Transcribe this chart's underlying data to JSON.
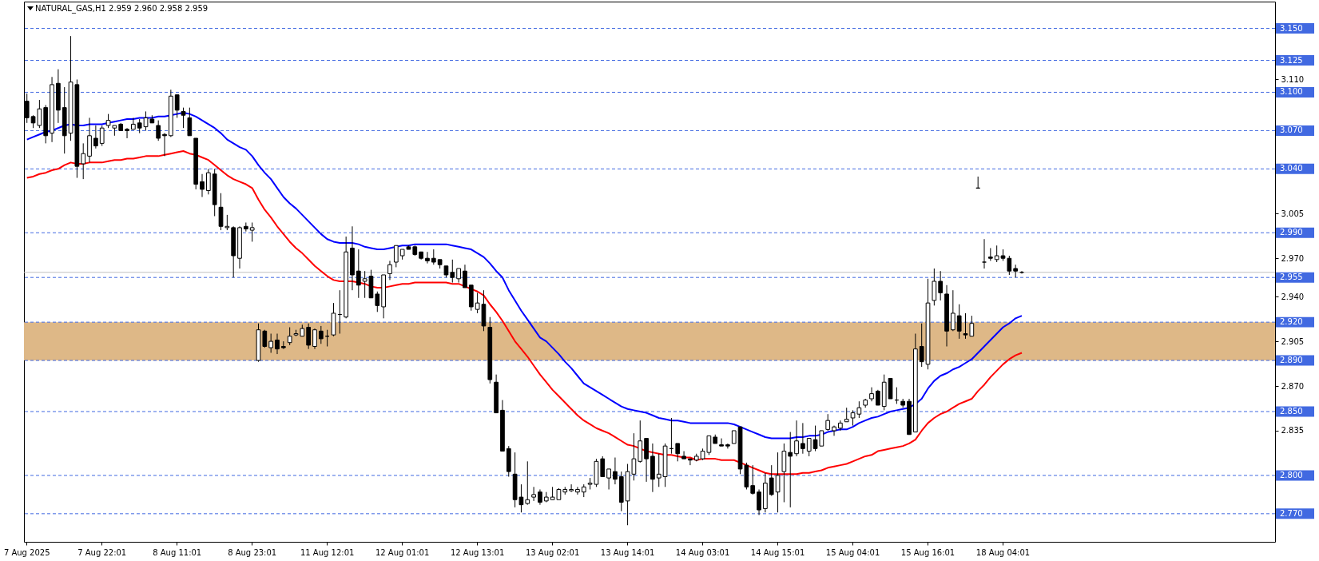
{
  "chart_data": {
    "type": "candlestick",
    "title": "NATURAL_GAS,H1 2.959 2.960 2.958 2.959",
    "categories": [
      "7 Aug 2025",
      null,
      null,
      null,
      null,
      null,
      null,
      null,
      null,
      null,
      null,
      null,
      "7 Aug 22:01",
      null,
      null,
      null,
      null,
      null,
      null,
      null,
      null,
      null,
      null,
      null,
      "8 Aug 11:01",
      null,
      null,
      null,
      null,
      null,
      null,
      null,
      null,
      null,
      null,
      null,
      "8 Aug 23:01",
      null,
      null,
      null,
      null,
      null,
      null,
      null,
      null,
      null,
      null,
      null,
      "11 Aug 12:01",
      null,
      null,
      null,
      null,
      null,
      null,
      null,
      null,
      null,
      null,
      null,
      "12 Aug 01:01",
      null,
      null,
      null,
      null,
      null,
      null,
      null,
      null,
      null,
      null,
      null,
      "12 Aug 13:01",
      null,
      null,
      null,
      null,
      null,
      null,
      null,
      null,
      null,
      null,
      null,
      "13 Aug 02:01",
      null,
      null,
      null,
      null,
      null,
      null,
      null,
      null,
      null,
      null,
      null,
      "13 Aug 14:01",
      null,
      null,
      null,
      null,
      null,
      null,
      null,
      null,
      null,
      null,
      null,
      "14 Aug 03:01",
      null,
      null,
      null,
      null,
      null,
      null,
      null,
      null,
      null,
      null,
      null,
      "14 Aug 15:01",
      null,
      null,
      null,
      null,
      null,
      null,
      null,
      null,
      null,
      null,
      null,
      "15 Aug 04:01",
      null,
      null,
      null,
      null,
      null,
      null,
      null,
      null,
      null,
      null,
      null,
      "15 Aug 16:01",
      null,
      null,
      null,
      null,
      null,
      null,
      null,
      null,
      null,
      null,
      null,
      "18 Aug 04:01",
      null,
      null,
      null,
      null,
      null,
      null,
      null,
      null,
      null,
      null,
      null,
      null,
      null,
      null,
      null,
      null,
      null,
      null,
      null,
      null,
      null,
      null,
      null,
      null,
      null,
      null,
      null,
      null,
      null,
      null,
      null,
      null,
      null,
      null,
      null,
      null,
      null,
      null,
      null,
      null,
      null,
      null,
      null
    ],
    "ohlc": [
      [
        3.093,
        3.099,
        3.076,
        3.08
      ],
      [
        3.081,
        3.082,
        3.072,
        3.076
      ],
      [
        3.074,
        3.094,
        3.072,
        3.087
      ],
      [
        3.088,
        3.09,
        3.06,
        3.066
      ],
      [
        3.068,
        3.112,
        3.061,
        3.106
      ],
      [
        3.107,
        3.118,
        3.076,
        3.086
      ],
      [
        3.088,
        3.104,
        3.052,
        3.066
      ],
      [
        3.068,
        3.144,
        3.062,
        3.108
      ],
      [
        3.106,
        3.11,
        3.033,
        3.042
      ],
      [
        3.044,
        3.06,
        3.032,
        3.052
      ],
      [
        3.05,
        3.08,
        3.045,
        3.066
      ],
      [
        3.064,
        3.074,
        3.056,
        3.058
      ],
      [
        3.06,
        3.074,
        3.058,
        3.072
      ],
      [
        3.074,
        3.083,
        3.072,
        3.078
      ],
      [
        3.072,
        3.074,
        3.066,
        3.074
      ],
      [
        3.075,
        3.076,
        3.07,
        3.07
      ],
      [
        3.071,
        3.072,
        3.064,
        3.07
      ],
      [
        3.071,
        3.08,
        3.071,
        3.075
      ],
      [
        3.076,
        3.079,
        3.068,
        3.072
      ],
      [
        3.073,
        3.085,
        3.07,
        3.08
      ],
      [
        3.079,
        3.082,
        3.076,
        3.076
      ],
      [
        3.074,
        3.078,
        3.062,
        3.064
      ],
      [
        3.067,
        3.068,
        3.05,
        3.066
      ],
      [
        3.066,
        3.102,
        3.065,
        3.097
      ],
      [
        3.098,
        3.098,
        3.08,
        3.086
      ],
      [
        3.085,
        3.088,
        3.072,
        3.082
      ],
      [
        3.08,
        3.088,
        3.066,
        3.066
      ],
      [
        3.064,
        3.064,
        3.024,
        3.028
      ],
      [
        3.03,
        3.036,
        3.018,
        3.024
      ],
      [
        3.023,
        3.04,
        3.02,
        3.037
      ],
      [
        3.036,
        3.04,
        3.003,
        3.012
      ],
      [
        3.01,
        3.021,
        2.992,
        2.995
      ],
      [
        2.994,
        3.004,
        2.992,
        2.995
      ],
      [
        2.994,
        2.995,
        2.955,
        2.972
      ],
      [
        2.97,
        2.995,
        2.962,
        2.994
      ],
      [
        2.995,
        2.998,
        2.991,
        2.993
      ],
      [
        2.992,
        2.998,
        2.983,
        2.994
      ],
      [
        2.89,
        2.919,
        2.889,
        2.914
      ],
      [
        2.913,
        2.914,
        2.9,
        2.901
      ],
      [
        2.9,
        2.911,
        2.896,
        2.905
      ],
      [
        2.906,
        2.911,
        2.895,
        2.899
      ],
      [
        2.901,
        2.905,
        2.899,
        2.9
      ],
      [
        2.904,
        2.916,
        2.902,
        2.909
      ],
      [
        2.91,
        2.914,
        2.909,
        2.911
      ],
      [
        2.909,
        2.918,
        2.909,
        2.915
      ],
      [
        2.916,
        2.919,
        2.899,
        2.902
      ],
      [
        2.901,
        2.915,
        2.899,
        2.914
      ],
      [
        2.913,
        2.917,
        2.903,
        2.907
      ],
      [
        2.909,
        2.914,
        2.901,
        2.909
      ],
      [
        2.91,
        2.935,
        2.909,
        2.927
      ],
      [
        2.926,
        2.945,
        2.911,
        2.926
      ],
      [
        2.924,
        2.987,
        2.923,
        2.975
      ],
      [
        2.978,
        2.995,
        2.945,
        2.957
      ],
      [
        2.96,
        2.977,
        2.939,
        2.949
      ],
      [
        2.952,
        2.96,
        2.939,
        2.954
      ],
      [
        2.956,
        2.961,
        2.939,
        2.939
      ],
      [
        2.942,
        2.944,
        2.928,
        2.933
      ],
      [
        2.932,
        2.957,
        2.923,
        2.957
      ],
      [
        2.958,
        2.968,
        2.953,
        2.965
      ],
      [
        2.967,
        2.98,
        2.963,
        2.98
      ],
      [
        2.972,
        2.977,
        2.969,
        2.977
      ],
      [
        2.979,
        2.98,
        2.977,
        2.977
      ],
      [
        2.979,
        2.98,
        2.972,
        2.973
      ],
      [
        2.975,
        2.975,
        2.969,
        2.97
      ],
      [
        2.97,
        2.975,
        2.966,
        2.968
      ],
      [
        2.97,
        2.977,
        2.965,
        2.967
      ],
      [
        2.969,
        2.969,
        2.962,
        2.965
      ],
      [
        2.964,
        2.964,
        2.955,
        2.957
      ],
      [
        2.959,
        2.969,
        2.951,
        2.955
      ],
      [
        2.954,
        2.962,
        2.951,
        2.962
      ],
      [
        2.96,
        2.965,
        2.947,
        2.947
      ],
      [
        2.949,
        2.949,
        2.929,
        2.932
      ],
      [
        2.93,
        2.943,
        2.927,
        2.935
      ],
      [
        2.934,
        2.945,
        2.913,
        2.917
      ],
      [
        2.916,
        2.924,
        2.872,
        2.875
      ],
      [
        2.873,
        2.879,
        2.849,
        2.849
      ],
      [
        2.851,
        2.859,
        2.819,
        2.819
      ],
      [
        2.821,
        2.823,
        2.799,
        2.803
      ],
      [
        2.801,
        2.818,
        2.775,
        2.781
      ],
      [
        2.783,
        2.793,
        2.771,
        2.777
      ],
      [
        2.778,
        2.811,
        2.777,
        2.781
      ],
      [
        2.783,
        2.791,
        2.78,
        2.785
      ],
      [
        2.787,
        2.789,
        2.777,
        2.779
      ],
      [
        2.78,
        2.787,
        2.779,
        2.783
      ],
      [
        2.781,
        2.791,
        2.781,
        2.783
      ],
      [
        2.781,
        2.79,
        2.781,
        2.789
      ],
      [
        2.787,
        2.791,
        2.785,
        2.789
      ],
      [
        2.788,
        2.793,
        2.787,
        2.789
      ],
      [
        2.787,
        2.791,
        2.785,
        2.789
      ],
      [
        2.787,
        2.793,
        2.783,
        2.791
      ],
      [
        2.793,
        2.798,
        2.789,
        2.794
      ],
      [
        2.793,
        2.813,
        2.791,
        2.811
      ],
      [
        2.813,
        2.815,
        2.799,
        2.799
      ],
      [
        2.798,
        2.805,
        2.789,
        2.805
      ],
      [
        2.803,
        2.814,
        2.793,
        2.797
      ],
      [
        2.799,
        2.803,
        2.772,
        2.779
      ],
      [
        2.78,
        2.809,
        2.761,
        2.803
      ],
      [
        2.801,
        2.833,
        2.796,
        2.813
      ],
      [
        2.811,
        2.843,
        2.81,
        2.827
      ],
      [
        2.829,
        2.829,
        2.795,
        2.813
      ],
      [
        2.815,
        2.825,
        2.787,
        2.797
      ],
      [
        2.798,
        2.817,
        2.791,
        2.801
      ],
      [
        2.799,
        2.825,
        2.791,
        2.823
      ],
      [
        2.821,
        2.845,
        2.817,
        2.821
      ],
      [
        2.825,
        2.825,
        2.811,
        2.817
      ],
      [
        2.815,
        2.819,
        2.813,
        2.813
      ],
      [
        2.813,
        2.813,
        2.808,
        2.812
      ],
      [
        2.812,
        2.817,
        2.811,
        2.815
      ],
      [
        2.813,
        2.821,
        2.812,
        2.819
      ],
      [
        2.818,
        2.831,
        2.816,
        2.831
      ],
      [
        2.83,
        2.832,
        2.825,
        2.825
      ],
      [
        2.824,
        2.829,
        2.823,
        2.823
      ],
      [
        2.824,
        2.825,
        2.821,
        2.823
      ],
      [
        2.825,
        2.835,
        2.825,
        2.835
      ],
      [
        2.838,
        2.838,
        2.801,
        2.805
      ],
      [
        2.808,
        2.81,
        2.789,
        2.791
      ],
      [
        2.792,
        2.808,
        2.785,
        2.786
      ],
      [
        2.787,
        2.789,
        2.769,
        2.773
      ],
      [
        2.774,
        2.802,
        2.771,
        2.794
      ],
      [
        2.798,
        2.808,
        2.784,
        2.785
      ],
      [
        2.787,
        2.818,
        2.771,
        2.8
      ],
      [
        2.803,
        2.825,
        2.779,
        2.819
      ],
      [
        2.818,
        2.834,
        2.775,
        2.815
      ],
      [
        2.817,
        2.843,
        2.815,
        2.827
      ],
      [
        2.825,
        2.841,
        2.817,
        2.821
      ],
      [
        2.819,
        2.829,
        2.815,
        2.829
      ],
      [
        2.828,
        2.839,
        2.819,
        2.821
      ],
      [
        2.823,
        2.835,
        2.823,
        2.835
      ],
      [
        2.836,
        2.848,
        2.835,
        2.843
      ],
      [
        2.835,
        2.839,
        2.831,
        2.838
      ],
      [
        2.837,
        2.843,
        2.835,
        2.841
      ],
      [
        2.842,
        2.853,
        2.842,
        2.844
      ],
      [
        2.845,
        2.851,
        2.839,
        2.849
      ],
      [
        2.848,
        2.858,
        2.845,
        2.853
      ],
      [
        2.855,
        2.86,
        2.853,
        2.859
      ],
      [
        2.86,
        2.869,
        2.858,
        2.864
      ],
      [
        2.866,
        2.867,
        2.855,
        2.855
      ],
      [
        2.854,
        2.879,
        2.851,
        2.873
      ],
      [
        2.876,
        2.876,
        2.86,
        2.86
      ],
      [
        2.859,
        2.869,
        2.856,
        2.859
      ],
      [
        2.858,
        2.86,
        2.853,
        2.855
      ],
      [
        2.858,
        2.86,
        2.832,
        2.832
      ],
      [
        2.834,
        2.911,
        2.834,
        2.899
      ],
      [
        2.901,
        2.919,
        2.885,
        2.889
      ],
      [
        2.887,
        2.954,
        2.883,
        2.935
      ],
      [
        2.937,
        2.962,
        2.933,
        2.952
      ],
      [
        2.952,
        2.96,
        2.937,
        2.943
      ],
      [
        2.942,
        2.949,
        2.901,
        2.913
      ],
      [
        2.914,
        2.945,
        2.913,
        2.927
      ],
      [
        2.925,
        2.934,
        2.907,
        2.913
      ],
      [
        2.911,
        2.927,
        2.907,
        2.91
      ],
      [
        2.909,
        2.925,
        2.909,
        2.919
      ],
      [
        3.025,
        3.034,
        3.025,
        3.025
      ],
      [
        2.967,
        2.985,
        2.962,
        2.967
      ],
      [
        2.971,
        2.978,
        2.968,
        2.97
      ],
      [
        2.969,
        2.98,
        2.967,
        2.972
      ],
      [
        2.972,
        2.977,
        2.968,
        2.97
      ],
      [
        2.97,
        2.972,
        2.957,
        2.96
      ],
      [
        2.962,
        2.965,
        2.955,
        2.96
      ],
      [
        2.959,
        2.96,
        2.958,
        2.959
      ],
      null,
      null,
      null,
      null,
      null,
      null,
      null,
      null,
      null,
      null,
      null,
      null,
      null,
      null,
      null,
      null,
      null,
      null,
      null,
      null,
      null,
      null,
      null,
      null,
      null,
      null,
      null,
      null,
      null,
      null,
      null,
      null,
      null,
      null,
      null,
      null,
      null,
      null,
      null,
      null
    ],
    "series": [
      {
        "type": "line",
        "color": "#0000ff",
        "values": [
          3.063,
          3.065,
          3.067,
          3.069,
          3.07,
          3.072,
          3.074,
          3.075,
          3.074,
          3.074,
          3.075,
          3.075,
          3.075,
          3.076,
          3.077,
          3.078,
          3.079,
          3.079,
          3.08,
          3.08,
          3.08,
          3.081,
          3.081,
          3.082,
          3.083,
          3.084,
          3.083,
          3.081,
          3.078,
          3.075,
          3.072,
          3.068,
          3.063,
          3.06,
          3.057,
          3.055,
          3.05,
          3.043,
          3.037,
          3.032,
          3.025,
          3.018,
          3.013,
          3.009,
          3.004,
          2.999,
          2.994,
          2.989,
          2.985,
          2.983,
          2.982,
          2.982,
          2.982,
          2.981,
          2.979,
          2.978,
          2.977,
          2.977,
          2.978,
          2.979,
          2.98,
          2.98,
          2.981,
          2.981,
          2.981,
          2.981,
          2.981,
          2.981,
          2.98,
          2.979,
          2.978,
          2.977,
          2.974,
          2.971,
          2.966,
          2.96,
          2.955,
          2.945,
          2.937,
          2.929,
          2.922,
          2.915,
          2.908,
          2.905,
          2.9,
          2.895,
          2.889,
          2.884,
          2.878,
          2.872,
          2.869,
          2.866,
          2.863,
          2.86,
          2.857,
          2.854,
          2.852,
          2.851,
          2.85,
          2.849,
          2.847,
          2.845,
          2.844,
          2.843,
          2.843,
          2.842,
          2.841,
          2.841,
          2.841,
          2.841,
          2.841,
          2.841,
          2.841,
          2.84,
          2.838,
          2.836,
          2.834,
          2.832,
          2.83,
          2.829,
          2.829,
          2.829,
          2.829,
          2.83,
          2.83,
          2.831,
          2.831,
          2.832,
          2.834,
          2.835,
          2.836,
          2.836,
          2.838,
          2.841,
          2.843,
          2.845,
          2.846,
          2.848,
          2.85,
          2.851,
          2.852,
          2.853,
          2.856,
          2.86,
          2.868,
          2.874,
          2.878,
          2.88,
          2.883,
          2.885,
          2.888,
          2.891,
          2.896,
          2.901,
          2.906,
          2.911,
          2.916,
          2.919,
          2.923,
          2.925,
          null,
          null,
          null,
          null,
          null,
          null,
          null,
          null,
          null,
          null,
          null,
          null,
          null,
          null,
          null,
          null,
          null,
          null,
          null,
          null,
          null,
          null,
          null,
          null,
          null,
          null,
          null,
          null,
          null,
          null,
          null,
          null,
          null,
          null,
          null,
          null,
          null,
          null,
          null,
          null
        ]
      },
      {
        "type": "line",
        "color": "#ff0000",
        "values": [
          3.033,
          3.034,
          3.036,
          3.037,
          3.039,
          3.04,
          3.043,
          3.045,
          3.044,
          3.044,
          3.045,
          3.045,
          3.045,
          3.046,
          3.047,
          3.047,
          3.048,
          3.048,
          3.049,
          3.05,
          3.05,
          3.05,
          3.051,
          3.052,
          3.053,
          3.054,
          3.052,
          3.051,
          3.049,
          3.047,
          3.043,
          3.039,
          3.035,
          3.032,
          3.03,
          3.028,
          3.025,
          3.016,
          3.008,
          3.002,
          2.995,
          2.989,
          2.983,
          2.978,
          2.974,
          2.969,
          2.964,
          2.96,
          2.956,
          2.953,
          2.952,
          2.952,
          2.952,
          2.951,
          2.95,
          2.948,
          2.947,
          2.947,
          2.948,
          2.949,
          2.95,
          2.95,
          2.951,
          2.951,
          2.951,
          2.951,
          2.951,
          2.951,
          2.95,
          2.95,
          2.948,
          2.946,
          2.944,
          2.941,
          2.934,
          2.928,
          2.921,
          2.913,
          2.905,
          2.899,
          2.893,
          2.886,
          2.879,
          2.873,
          2.867,
          2.862,
          2.857,
          2.852,
          2.847,
          2.843,
          2.84,
          2.837,
          2.835,
          2.833,
          2.83,
          2.827,
          2.824,
          2.823,
          2.821,
          2.819,
          2.818,
          2.817,
          2.816,
          2.816,
          2.815,
          2.814,
          2.814,
          2.812,
          2.813,
          2.813,
          2.813,
          2.812,
          2.812,
          2.812,
          2.81,
          2.808,
          2.806,
          2.804,
          2.802,
          2.801,
          2.801,
          2.801,
          2.801,
          2.801,
          2.802,
          2.802,
          2.803,
          2.804,
          2.806,
          2.807,
          2.808,
          2.809,
          2.811,
          2.813,
          2.815,
          2.816,
          2.819,
          2.82,
          2.821,
          2.822,
          2.823,
          2.825,
          2.828,
          2.835,
          2.841,
          2.845,
          2.848,
          2.85,
          2.853,
          2.856,
          2.858,
          2.86,
          2.866,
          2.871,
          2.877,
          2.882,
          2.887,
          2.891,
          2.894,
          2.896,
          null,
          null,
          null,
          null,
          null,
          null,
          null,
          null,
          null,
          null,
          null,
          null,
          null,
          null,
          null,
          null,
          null,
          null,
          null,
          null,
          null,
          null,
          null,
          null,
          null,
          null,
          null,
          null,
          null,
          null,
          null,
          null,
          null,
          null,
          null,
          null,
          null,
          null,
          null,
          null
        ]
      }
    ],
    "ylim": [
      2.748,
      3.171
    ],
    "yticks": [
      {
        "value": 3.11,
        "label": "3.110"
      },
      {
        "value": 3.005,
        "label": "3.005"
      },
      {
        "value": 2.97,
        "label": "2.970"
      },
      {
        "value": 2.94,
        "label": "2.940"
      },
      {
        "value": 2.905,
        "label": "2.905"
      },
      {
        "value": 2.87,
        "label": "2.870"
      },
      {
        "value": 2.835,
        "label": "2.835"
      }
    ],
    "ref_lines": [
      {
        "axis": "y",
        "value": 3.15,
        "label": "3.150",
        "color": "#4169e1",
        "line_style": "dashed"
      },
      {
        "axis": "y",
        "value": 3.125,
        "label": "3.125",
        "color": "#4169e1",
        "line_style": "dashed"
      },
      {
        "axis": "y",
        "value": 3.1,
        "label": "3.100",
        "color": "#4169e1",
        "line_style": "dashed"
      },
      {
        "axis": "y",
        "value": 3.07,
        "label": "3.070",
        "color": "#4169e1",
        "line_style": "dashed"
      },
      {
        "axis": "y",
        "value": 3.04,
        "label": "3.040",
        "color": "#4169e1",
        "line_style": "dashed"
      },
      {
        "axis": "y",
        "value": 2.99,
        "label": "2.990",
        "color": "#4169e1",
        "line_style": "dashed"
      },
      {
        "axis": "y",
        "value": 2.955,
        "label": "2.955",
        "color": "#4169e1",
        "line_style": "dashed"
      },
      {
        "axis": "y",
        "value": 2.92,
        "label": "2.920",
        "color": "#4169e1",
        "line_style": "dashed"
      },
      {
        "axis": "y",
        "value": 2.89,
        "label": "2.890",
        "color": "#4169e1",
        "line_style": "dashed"
      },
      {
        "axis": "y",
        "value": 2.85,
        "label": "2.850",
        "color": "#4169e1",
        "line_style": "dashed"
      },
      {
        "axis": "y",
        "value": 2.8,
        "label": "2.800",
        "color": "#4169e1",
        "line_style": "dashed"
      },
      {
        "axis": "y",
        "value": 2.77,
        "label": "2.770",
        "color": "#4169e1",
        "line_style": "dashed"
      },
      {
        "axis": "y",
        "value": 2.959,
        "color": "#c0c0c0",
        "line_style": "solid"
      }
    ],
    "bands": [
      {
        "axis": "y",
        "from": 2.89,
        "to": 2.92,
        "color": "#deb887"
      }
    ]
  }
}
